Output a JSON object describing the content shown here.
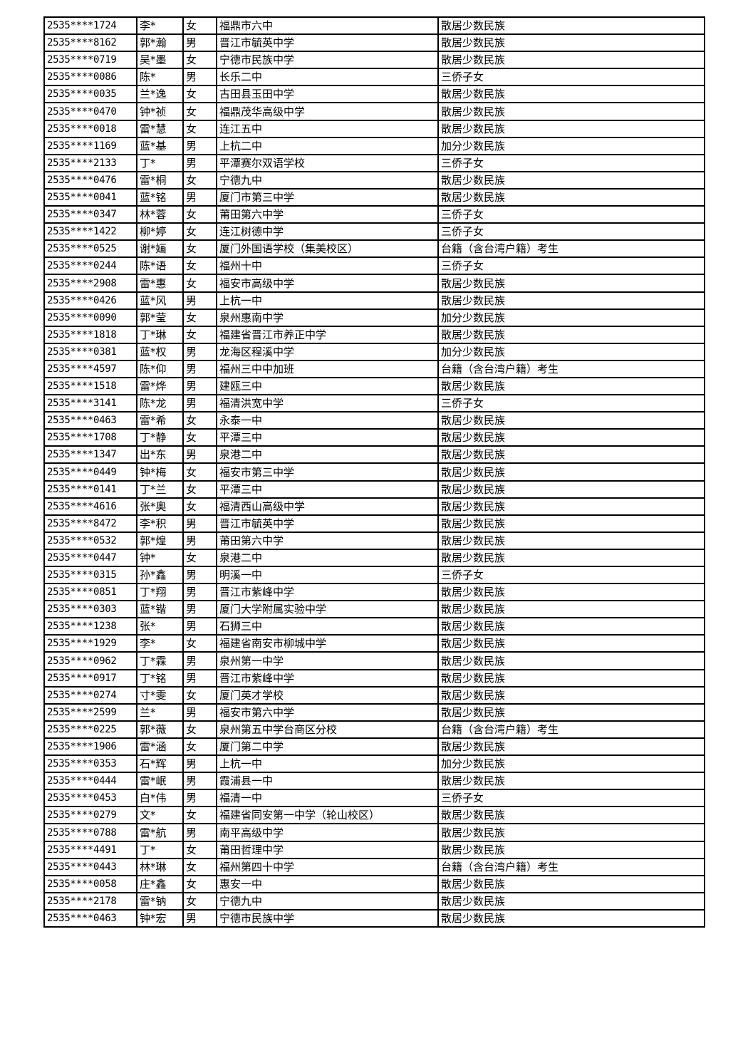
{
  "rows": [
    [
      "2535****1724",
      "李*",
      "女",
      "福鼎市六中",
      "散居少数民族"
    ],
    [
      "2535****8162",
      "郭*瀚",
      "男",
      "晋江市毓英中学",
      "散居少数民族"
    ],
    [
      "2535****0719",
      "吴*墨",
      "女",
      "宁德市民族中学",
      "散居少数民族"
    ],
    [
      "2535****0086",
      "陈*",
      "男",
      "长乐二中",
      "三侨子女"
    ],
    [
      "2535****0035",
      "兰*逸",
      "女",
      "古田县玉田中学",
      "散居少数民族"
    ],
    [
      "2535****0470",
      "钟*祯",
      "女",
      "福鼎茂华高级中学",
      "散居少数民族"
    ],
    [
      "2535****0018",
      "雷*慧",
      "女",
      "连江五中",
      "散居少数民族"
    ],
    [
      "2535****1169",
      "蓝*基",
      "男",
      "上杭二中",
      "加分少数民族"
    ],
    [
      "2535****2133",
      "丁*",
      "男",
      "平潭赛尔双语学校",
      "三侨子女"
    ],
    [
      "2535****0476",
      "雷*桐",
      "女",
      "宁德九中",
      "散居少数民族"
    ],
    [
      "2535****0041",
      "蓝*铭",
      "男",
      "厦门市第三中学",
      "散居少数民族"
    ],
    [
      "2535****0347",
      "林*蓉",
      "女",
      "莆田第六中学",
      "三侨子女"
    ],
    [
      "2535****1422",
      "柳*婷",
      "女",
      "连江树德中学",
      "三侨子女"
    ],
    [
      "2535****0525",
      "谢*婳",
      "女",
      "厦门外国语学校（集美校区）",
      "台籍（含台湾户籍）考生"
    ],
    [
      "2535****0244",
      "陈*语",
      "女",
      "福州十中",
      "三侨子女"
    ],
    [
      "2535****2908",
      "雷*惠",
      "女",
      "福安市高级中学",
      "散居少数民族"
    ],
    [
      "2535****0426",
      "蓝*风",
      "男",
      "上杭一中",
      "散居少数民族"
    ],
    [
      "2535****0090",
      "郭*莹",
      "女",
      "泉州惠南中学",
      "加分少数民族"
    ],
    [
      "2535****1818",
      "丁*琳",
      "女",
      "福建省晋江市养正中学",
      "散居少数民族"
    ],
    [
      "2535****0381",
      "蓝*权",
      "男",
      "龙海区程溪中学",
      "加分少数民族"
    ],
    [
      "2535****4597",
      "陈*仰",
      "男",
      "福州三中中加班",
      "台籍（含台湾户籍）考生"
    ],
    [
      "2535****1518",
      "雷*烨",
      "男",
      "建瓯三中",
      "散居少数民族"
    ],
    [
      "2535****3141",
      "陈*龙",
      "男",
      "福清洪宽中学",
      "三侨子女"
    ],
    [
      "2535****0463",
      "雷*希",
      "女",
      "永泰一中",
      "散居少数民族"
    ],
    [
      "2535****1708",
      "丁*静",
      "女",
      "平潭三中",
      "散居少数民族"
    ],
    [
      "2535****1347",
      "出*东",
      "男",
      "泉港二中",
      "散居少数民族"
    ],
    [
      "2535****0449",
      "钟*梅",
      "女",
      "福安市第三中学",
      "散居少数民族"
    ],
    [
      "2535****0141",
      "丁*兰",
      "女",
      "平潭三中",
      "散居少数民族"
    ],
    [
      "2535****4616",
      "张*奥",
      "女",
      "福清西山高级中学",
      "散居少数民族"
    ],
    [
      "2535****8472",
      "李*积",
      "男",
      "晋江市毓英中学",
      "散居少数民族"
    ],
    [
      "2535****0532",
      "郭*煌",
      "男",
      "莆田第六中学",
      "散居少数民族"
    ],
    [
      "2535****0447",
      "钟*",
      "女",
      "泉港二中",
      "散居少数民族"
    ],
    [
      "2535****0315",
      "孙*鑫",
      "男",
      "明溪一中",
      "三侨子女"
    ],
    [
      "2535****0851",
      "丁*翔",
      "男",
      "晋江市紫峰中学",
      "散居少数民族"
    ],
    [
      "2535****0303",
      "蓝*锴",
      "男",
      "厦门大学附属实验中学",
      "散居少数民族"
    ],
    [
      "2535****1238",
      "张*",
      "男",
      "石狮三中",
      "散居少数民族"
    ],
    [
      "2535****1929",
      "李*",
      "女",
      "福建省南安市柳城中学",
      "散居少数民族"
    ],
    [
      "2535****0962",
      "丁*霖",
      "男",
      "泉州第一中学",
      "散居少数民族"
    ],
    [
      "2535****0917",
      "丁*铭",
      "男",
      "晋江市紫峰中学",
      "散居少数民族"
    ],
    [
      "2535****0274",
      "寸*雯",
      "女",
      "厦门英才学校",
      "散居少数民族"
    ],
    [
      "2535****2599",
      "兰*",
      "男",
      "福安市第六中学",
      "散居少数民族"
    ],
    [
      "2535****0225",
      "郭*薇",
      "女",
      "泉州第五中学台商区分校",
      "台籍（含台湾户籍）考生"
    ],
    [
      "2535****1906",
      "雷*涵",
      "女",
      "厦门第二中学",
      "散居少数民族"
    ],
    [
      "2535****0353",
      "石*辉",
      "男",
      "上杭一中",
      "加分少数民族"
    ],
    [
      "2535****0444",
      "雷*岷",
      "男",
      "霞浦县一中",
      "散居少数民族"
    ],
    [
      "2535****0453",
      "白*伟",
      "男",
      "福清一中",
      "三侨子女"
    ],
    [
      "2535****0279",
      "文*",
      "女",
      "福建省同安第一中学（轮山校区）",
      "散居少数民族"
    ],
    [
      "2535****0788",
      "雷*航",
      "男",
      "南平高级中学",
      "散居少数民族"
    ],
    [
      "2535****4491",
      "丁*",
      "女",
      "莆田哲理中学",
      "散居少数民族"
    ],
    [
      "2535****0443",
      "林*琳",
      "女",
      "福州第四十中学",
      "台籍（含台湾户籍）考生"
    ],
    [
      "2535****0058",
      "庄*鑫",
      "女",
      "惠安一中",
      "散居少数民族"
    ],
    [
      "2535****2178",
      "雷*钠",
      "女",
      "宁德九中",
      "散居少数民族"
    ],
    [
      "2535****0463",
      "钟*宏",
      "男",
      "宁德市民族中学",
      "散居少数民族"
    ]
  ]
}
